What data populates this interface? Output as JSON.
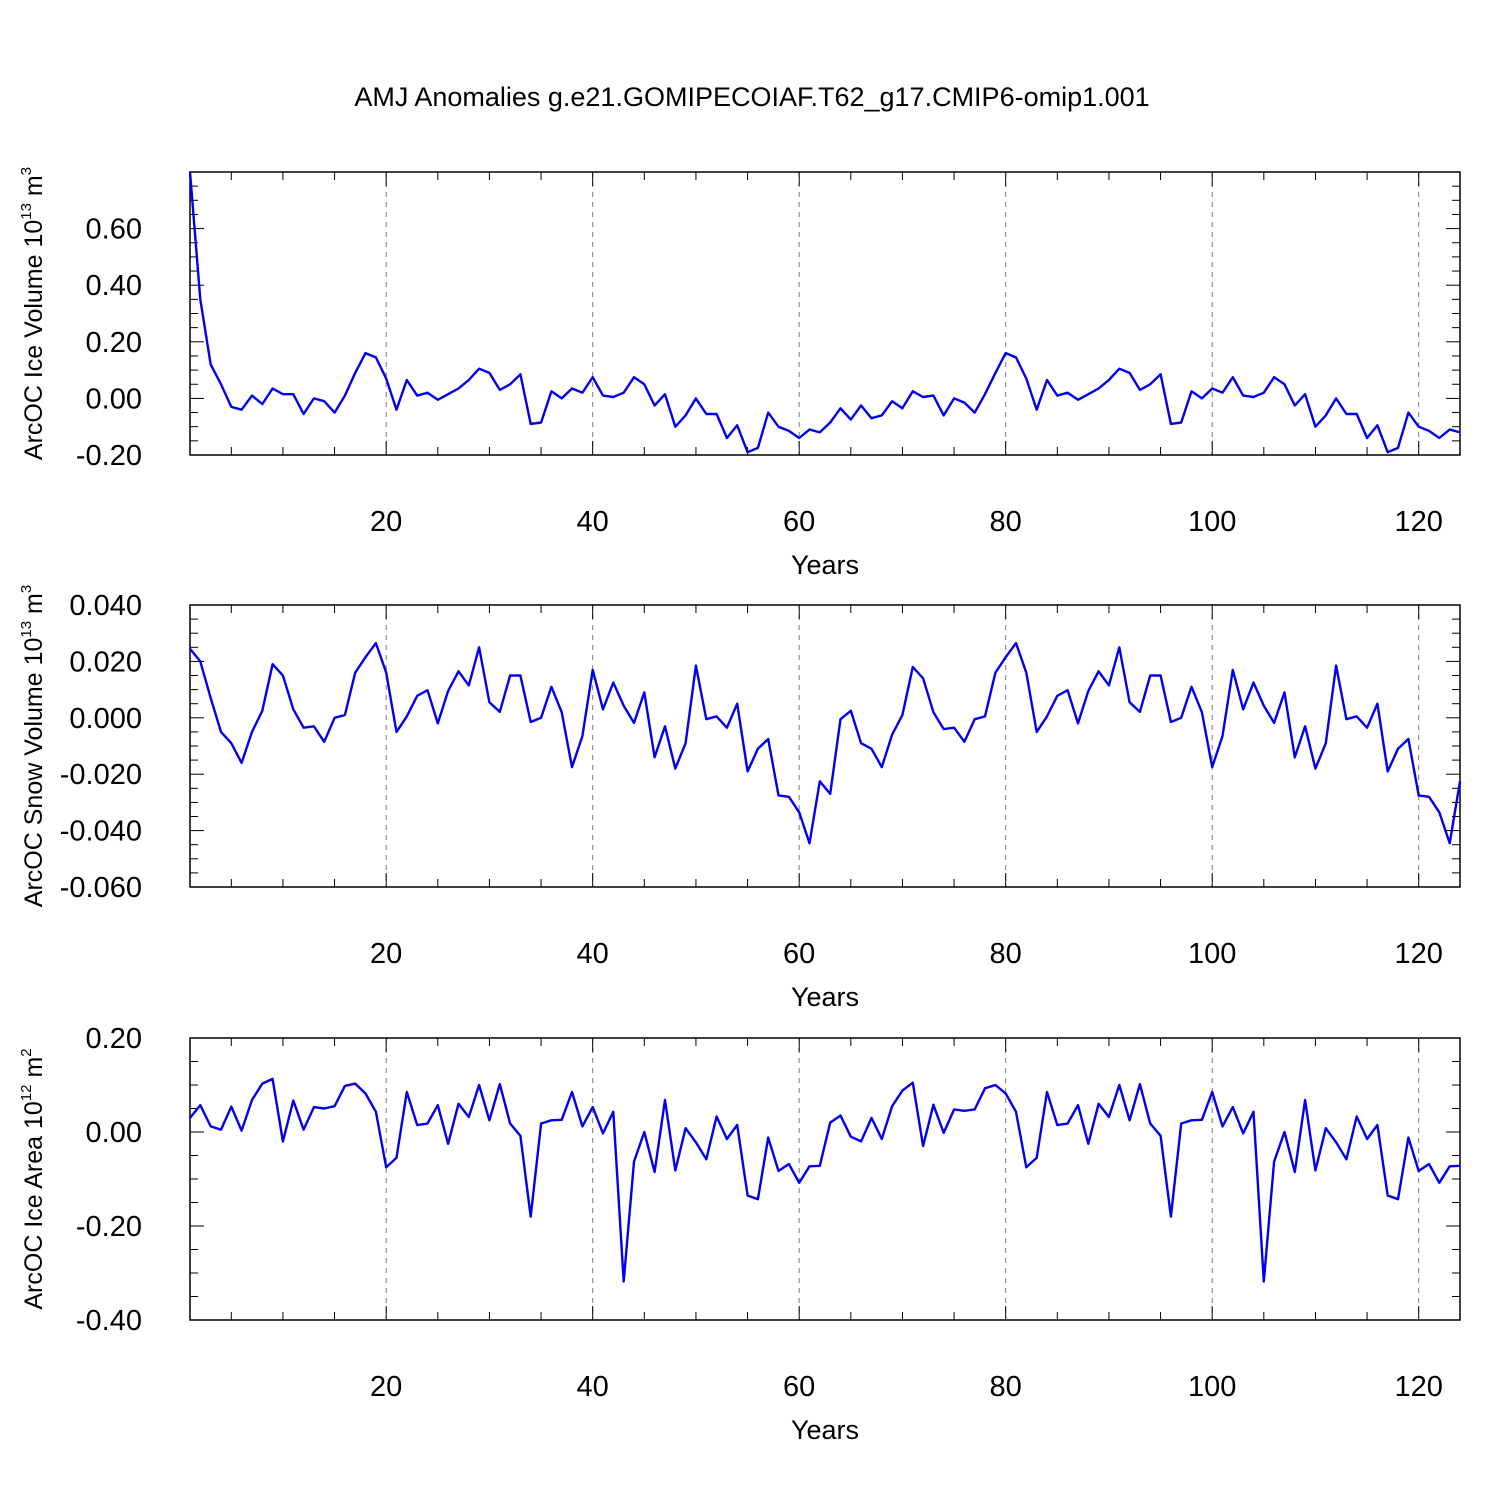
{
  "title": "AMJ Anomalies g.e21.GOMIPECOIAF.T62_g17.CMIP6-omip1.001",
  "series_color": "#0000ee",
  "chart_data": [
    {
      "type": "line",
      "ylabel": "ArcOC Ice Volume 10",
      "ylabel_exp": "13",
      "ylabel_unit": " m",
      "ylabel_unit_exp": "3",
      "xlabel": "Years",
      "xlim": [
        1,
        124
      ],
      "ylim": [
        -0.2,
        0.8
      ],
      "xticks": [
        20,
        40,
        60,
        80,
        100,
        120
      ],
      "xtick_labels": [
        "20",
        "40",
        "60",
        "80",
        "100",
        "120"
      ],
      "yticks": [
        -0.2,
        0.0,
        0.2,
        0.4,
        0.6
      ],
      "ytick_labels": [
        "-0.20",
        "0.00",
        "0.20",
        "0.40",
        "0.60"
      ],
      "grid": "vertical dashed",
      "values": [
        0.8,
        0.35,
        0.12,
        0.05,
        -0.03,
        -0.04,
        0.01,
        -0.02,
        0.035,
        0.015,
        0.015,
        -0.055,
        0.0,
        -0.01,
        -0.05,
        0.01,
        0.09,
        0.16,
        0.145,
        0.07,
        -0.04,
        0.065,
        0.01,
        0.02,
        -0.005,
        0.015,
        0.035,
        0.065,
        0.105,
        0.09,
        0.03,
        0.05,
        0.085,
        -0.09,
        -0.085,
        0.025,
        0.0,
        0.035,
        0.02,
        0.075,
        0.01,
        0.005,
        0.02,
        0.075,
        0.05,
        -0.025,
        0.015,
        -0.1,
        -0.06,
        0.0,
        -0.055,
        -0.055,
        -0.14,
        -0.095,
        -0.19,
        -0.175,
        -0.05,
        -0.1,
        -0.115,
        -0.14,
        -0.11,
        -0.12,
        -0.085,
        -0.035,
        -0.075,
        -0.025,
        -0.07,
        -0.06,
        -0.01,
        -0.035,
        0.025,
        0.005,
        0.01,
        -0.06,
        0.0,
        -0.015,
        -0.05,
        0.015,
        0.09,
        0.16,
        0.145,
        0.07,
        -0.04,
        0.065,
        0.01,
        0.02,
        -0.005,
        0.015,
        0.035,
        0.065,
        0.105,
        0.09,
        0.03,
        0.05,
        0.085,
        -0.09,
        -0.085,
        0.025,
        0.0,
        0.035,
        0.02,
        0.075,
        0.01,
        0.005,
        0.02,
        0.075,
        0.05,
        -0.025,
        0.015,
        -0.1,
        -0.06,
        0.0,
        -0.055,
        -0.055,
        -0.14,
        -0.095,
        -0.19,
        -0.175,
        -0.05,
        -0.1,
        -0.115,
        -0.14,
        -0.11,
        -0.12
      ]
    },
    {
      "type": "line",
      "ylabel": "ArcOC Snow Volume 10",
      "ylabel_exp": "13",
      "ylabel_unit": " m",
      "ylabel_unit_exp": "3",
      "xlabel": "Years",
      "xlim": [
        1,
        124
      ],
      "ylim": [
        -0.06,
        0.04
      ],
      "xticks": [
        20,
        40,
        60,
        80,
        100,
        120
      ],
      "xtick_labels": [
        "20",
        "40",
        "60",
        "80",
        "100",
        "120"
      ],
      "yticks": [
        -0.06,
        -0.04,
        -0.02,
        0.0,
        0.02,
        0.04
      ],
      "ytick_labels": [
        "-0.060",
        "-0.040",
        "-0.020",
        "0.000",
        "0.020",
        "0.040"
      ],
      "grid": "vertical dashed",
      "values": [
        0.0245,
        0.02,
        0.007,
        -0.005,
        -0.009,
        -0.016,
        -0.005,
        0.0025,
        0.019,
        0.015,
        0.003,
        -0.0035,
        -0.003,
        -0.0085,
        0.0,
        0.001,
        0.016,
        0.0215,
        0.0265,
        0.016,
        -0.005,
        0.0005,
        0.0078,
        0.0098,
        -0.002,
        0.0095,
        0.0165,
        0.0115,
        0.025,
        0.0055,
        0.0021,
        0.015,
        0.015,
        -0.0015,
        0.0,
        0.011,
        0.002,
        -0.0175,
        -0.0065,
        0.017,
        0.003,
        0.0125,
        0.0043,
        -0.0018,
        0.009,
        -0.014,
        -0.003,
        -0.018,
        -0.009,
        0.0185,
        -0.0005,
        0.0005,
        -0.0035,
        0.005,
        -0.019,
        -0.011,
        -0.0075,
        -0.0275,
        -0.028,
        -0.0335,
        -0.0445,
        -0.0225,
        -0.027,
        -0.0005,
        0.0025,
        -0.009,
        -0.011,
        -0.0175,
        -0.006,
        0.001,
        0.018,
        0.014,
        0.002,
        -0.004,
        -0.0035,
        -0.0085,
        -0.0005,
        0.0005,
        0.016,
        0.0215,
        0.0265,
        0.016,
        -0.005,
        0.0005,
        0.0078,
        0.0098,
        -0.002,
        0.0095,
        0.0165,
        0.0115,
        0.025,
        0.0055,
        0.0021,
        0.015,
        0.015,
        -0.0015,
        0.0,
        0.011,
        0.002,
        -0.0175,
        -0.0065,
        0.017,
        0.003,
        0.0125,
        0.0043,
        -0.0018,
        0.009,
        -0.014,
        -0.003,
        -0.018,
        -0.009,
        0.0185,
        -0.0005,
        0.0005,
        -0.0035,
        0.005,
        -0.019,
        -0.011,
        -0.0075,
        -0.0275,
        -0.028,
        -0.0335,
        -0.0445,
        -0.0225
      ]
    },
    {
      "type": "line",
      "ylabel": "ArcOC Ice Area 10",
      "ylabel_exp": "12",
      "ylabel_unit": " m",
      "ylabel_unit_exp": "2",
      "xlabel": "Years",
      "xlim": [
        1,
        124
      ],
      "ylim": [
        -0.4,
        0.2
      ],
      "xticks": [
        20,
        40,
        60,
        80,
        100,
        120
      ],
      "xtick_labels": [
        "20",
        "40",
        "60",
        "80",
        "100",
        "120"
      ],
      "yticks": [
        -0.4,
        -0.2,
        0.0,
        0.2
      ],
      "ytick_labels": [
        "-0.40",
        "-0.20",
        "0.00",
        "0.20"
      ],
      "grid": "vertical dashed",
      "values": [
        0.03,
        0.057,
        0.012,
        0.005,
        0.054,
        0.003,
        0.068,
        0.103,
        0.113,
        -0.02,
        0.067,
        0.005,
        0.053,
        0.05,
        0.055,
        0.098,
        0.103,
        0.082,
        0.043,
        -0.075,
        -0.055,
        0.085,
        0.015,
        0.018,
        0.057,
        -0.025,
        0.06,
        0.032,
        0.1,
        0.025,
        0.102,
        0.018,
        -0.008,
        -0.18,
        0.018,
        0.025,
        0.026,
        0.085,
        0.012,
        0.053,
        -0.003,
        0.043,
        -0.318,
        -0.063,
        0.0,
        -0.085,
        0.068,
        -0.082,
        0.008,
        -0.022,
        -0.058,
        0.033,
        -0.015,
        0.015,
        -0.135,
        -0.143,
        -0.012,
        -0.083,
        -0.068,
        -0.108,
        -0.073,
        -0.072,
        0.02,
        0.035,
        -0.01,
        -0.02,
        0.03,
        -0.015,
        0.055,
        0.088,
        0.105,
        -0.03,
        0.058,
        -0.002,
        0.048,
        0.045,
        0.048,
        0.093,
        0.1,
        0.082,
        0.043,
        -0.075,
        -0.055,
        0.085,
        0.015,
        0.018,
        0.057,
        -0.025,
        0.06,
        0.032,
        0.1,
        0.025,
        0.102,
        0.018,
        -0.008,
        -0.18,
        0.018,
        0.025,
        0.026,
        0.085,
        0.012,
        0.053,
        -0.003,
        0.043,
        -0.318,
        -0.063,
        0.0,
        -0.085,
        0.068,
        -0.082,
        0.008,
        -0.022,
        -0.058,
        0.033,
        -0.015,
        0.015,
        -0.135,
        -0.143,
        -0.012,
        -0.083,
        -0.068,
        -0.108,
        -0.073,
        -0.072
      ]
    }
  ]
}
